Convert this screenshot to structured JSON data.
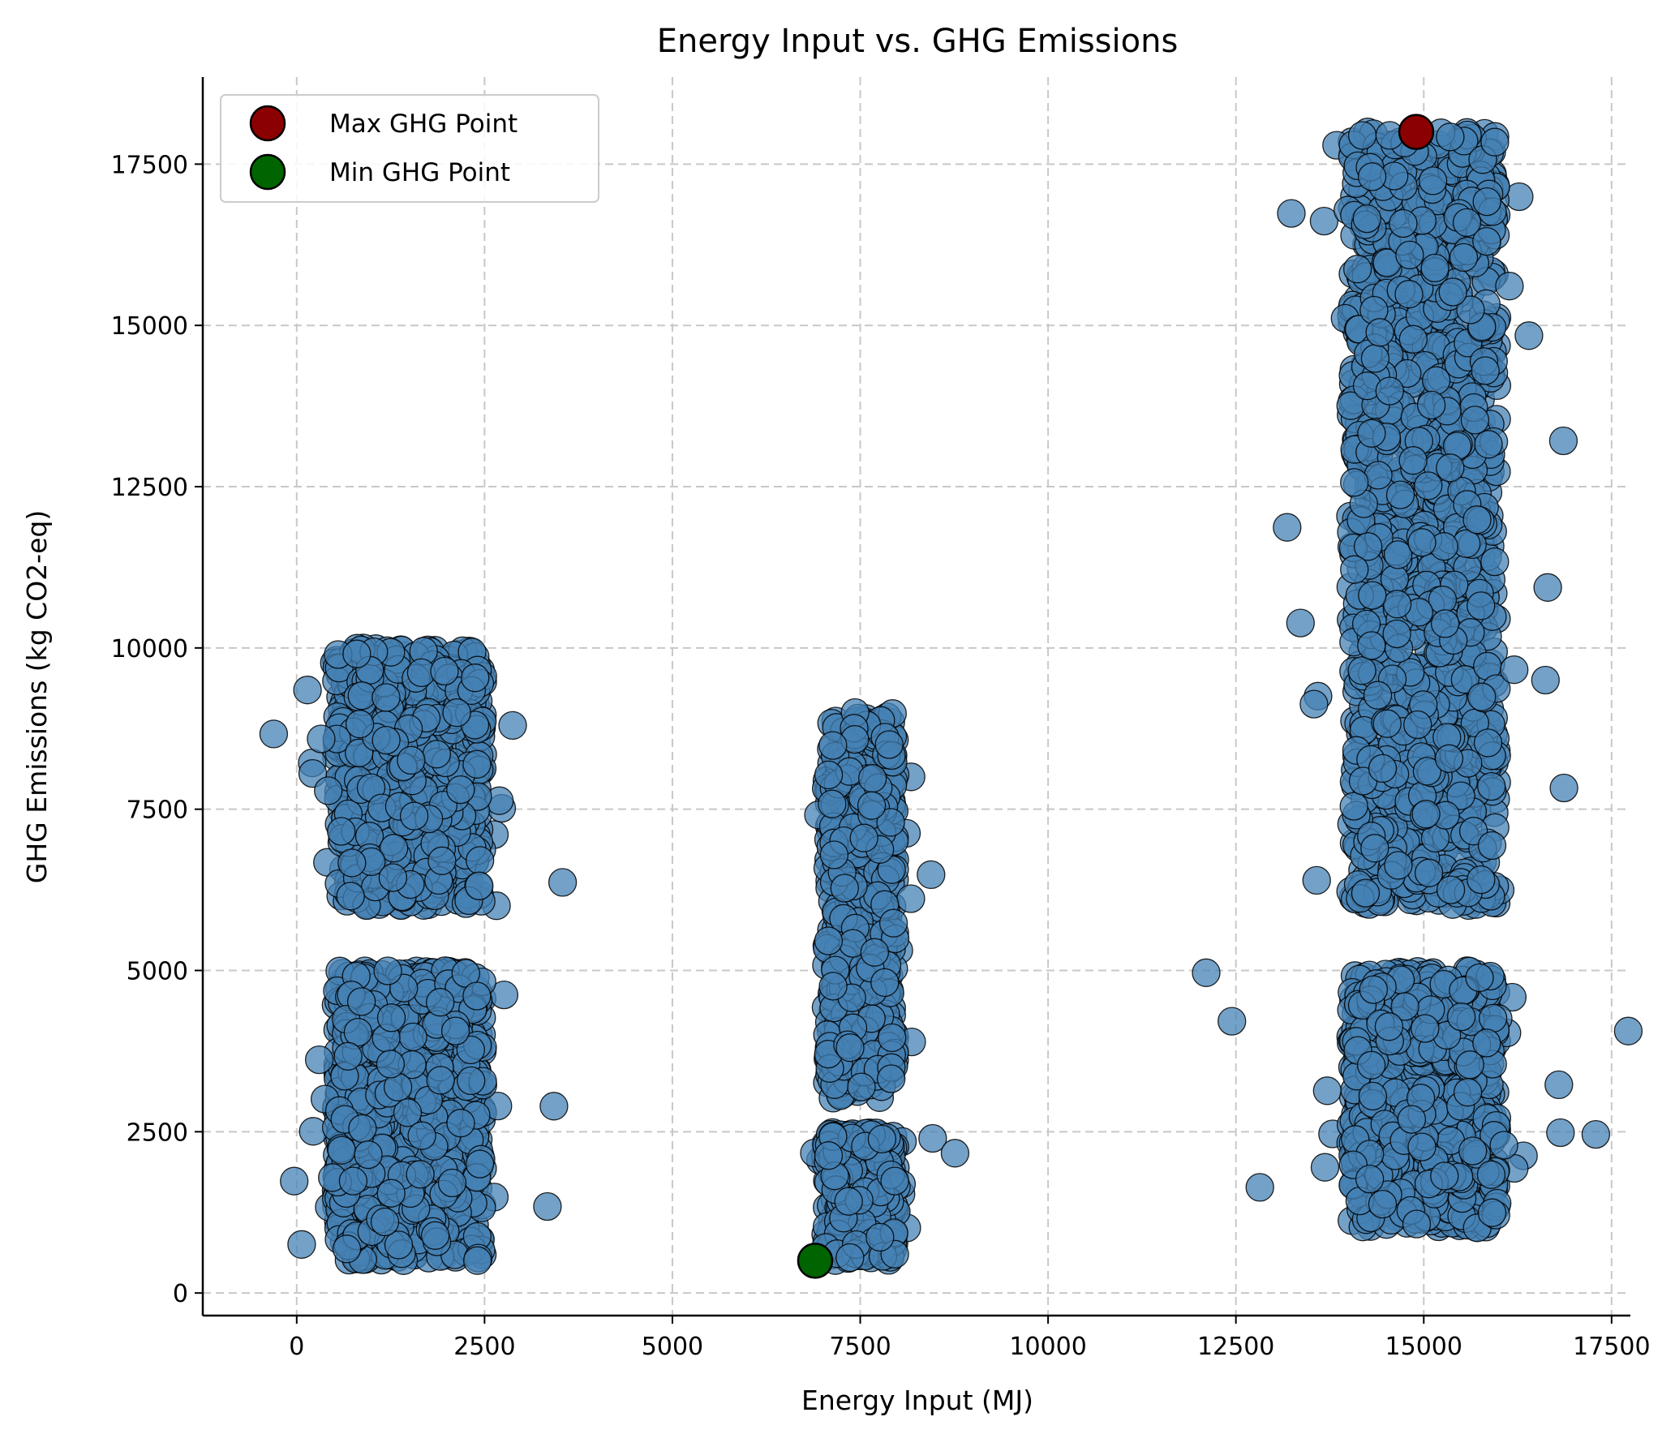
{
  "chart_data": {
    "type": "scatter",
    "title": "Energy Input vs. GHG Emissions",
    "xlabel": "Energy Input (MJ)",
    "ylabel": "GHG Emissions (kg CO2-eq)",
    "xlim": [
      -1250,
      17750
    ],
    "ylim": [
      -350,
      18850
    ],
    "xticks": [
      0,
      2500,
      5000,
      7500,
      10000,
      12500,
      15000,
      17500
    ],
    "yticks": [
      0,
      2500,
      5000,
      7500,
      10000,
      12500,
      15000,
      17500
    ],
    "grid": true,
    "legend_position": "top-left",
    "point_color": "#4682b4",
    "point_edge_color": "#000000",
    "clusters": [
      {
        "x_center": 1500,
        "x_spread": 1150,
        "y_range": [
          500,
          5000
        ],
        "count": 900
      },
      {
        "x_center": 1500,
        "x_spread": 1150,
        "y_range": [
          6000,
          10000
        ],
        "count": 700
      },
      {
        "x_center": 7500,
        "x_spread": 550,
        "y_range": [
          500,
          2500
        ],
        "count": 350
      },
      {
        "x_center": 7500,
        "x_spread": 550,
        "y_range": [
          3000,
          9000
        ],
        "count": 550
      },
      {
        "x_center": 15000,
        "x_spread": 1150,
        "y_range": [
          1000,
          5000
        ],
        "count": 750
      },
      {
        "x_center": 15000,
        "x_spread": 1150,
        "y_range": [
          6000,
          18000
        ],
        "count": 1400
      }
    ],
    "highlights": [
      {
        "name": "Max GHG Point",
        "x": 14900,
        "y": 18000,
        "color": "#8b0000"
      },
      {
        "name": "Min GHG Point",
        "x": 6900,
        "y": 500,
        "color": "#006400"
      }
    ]
  }
}
